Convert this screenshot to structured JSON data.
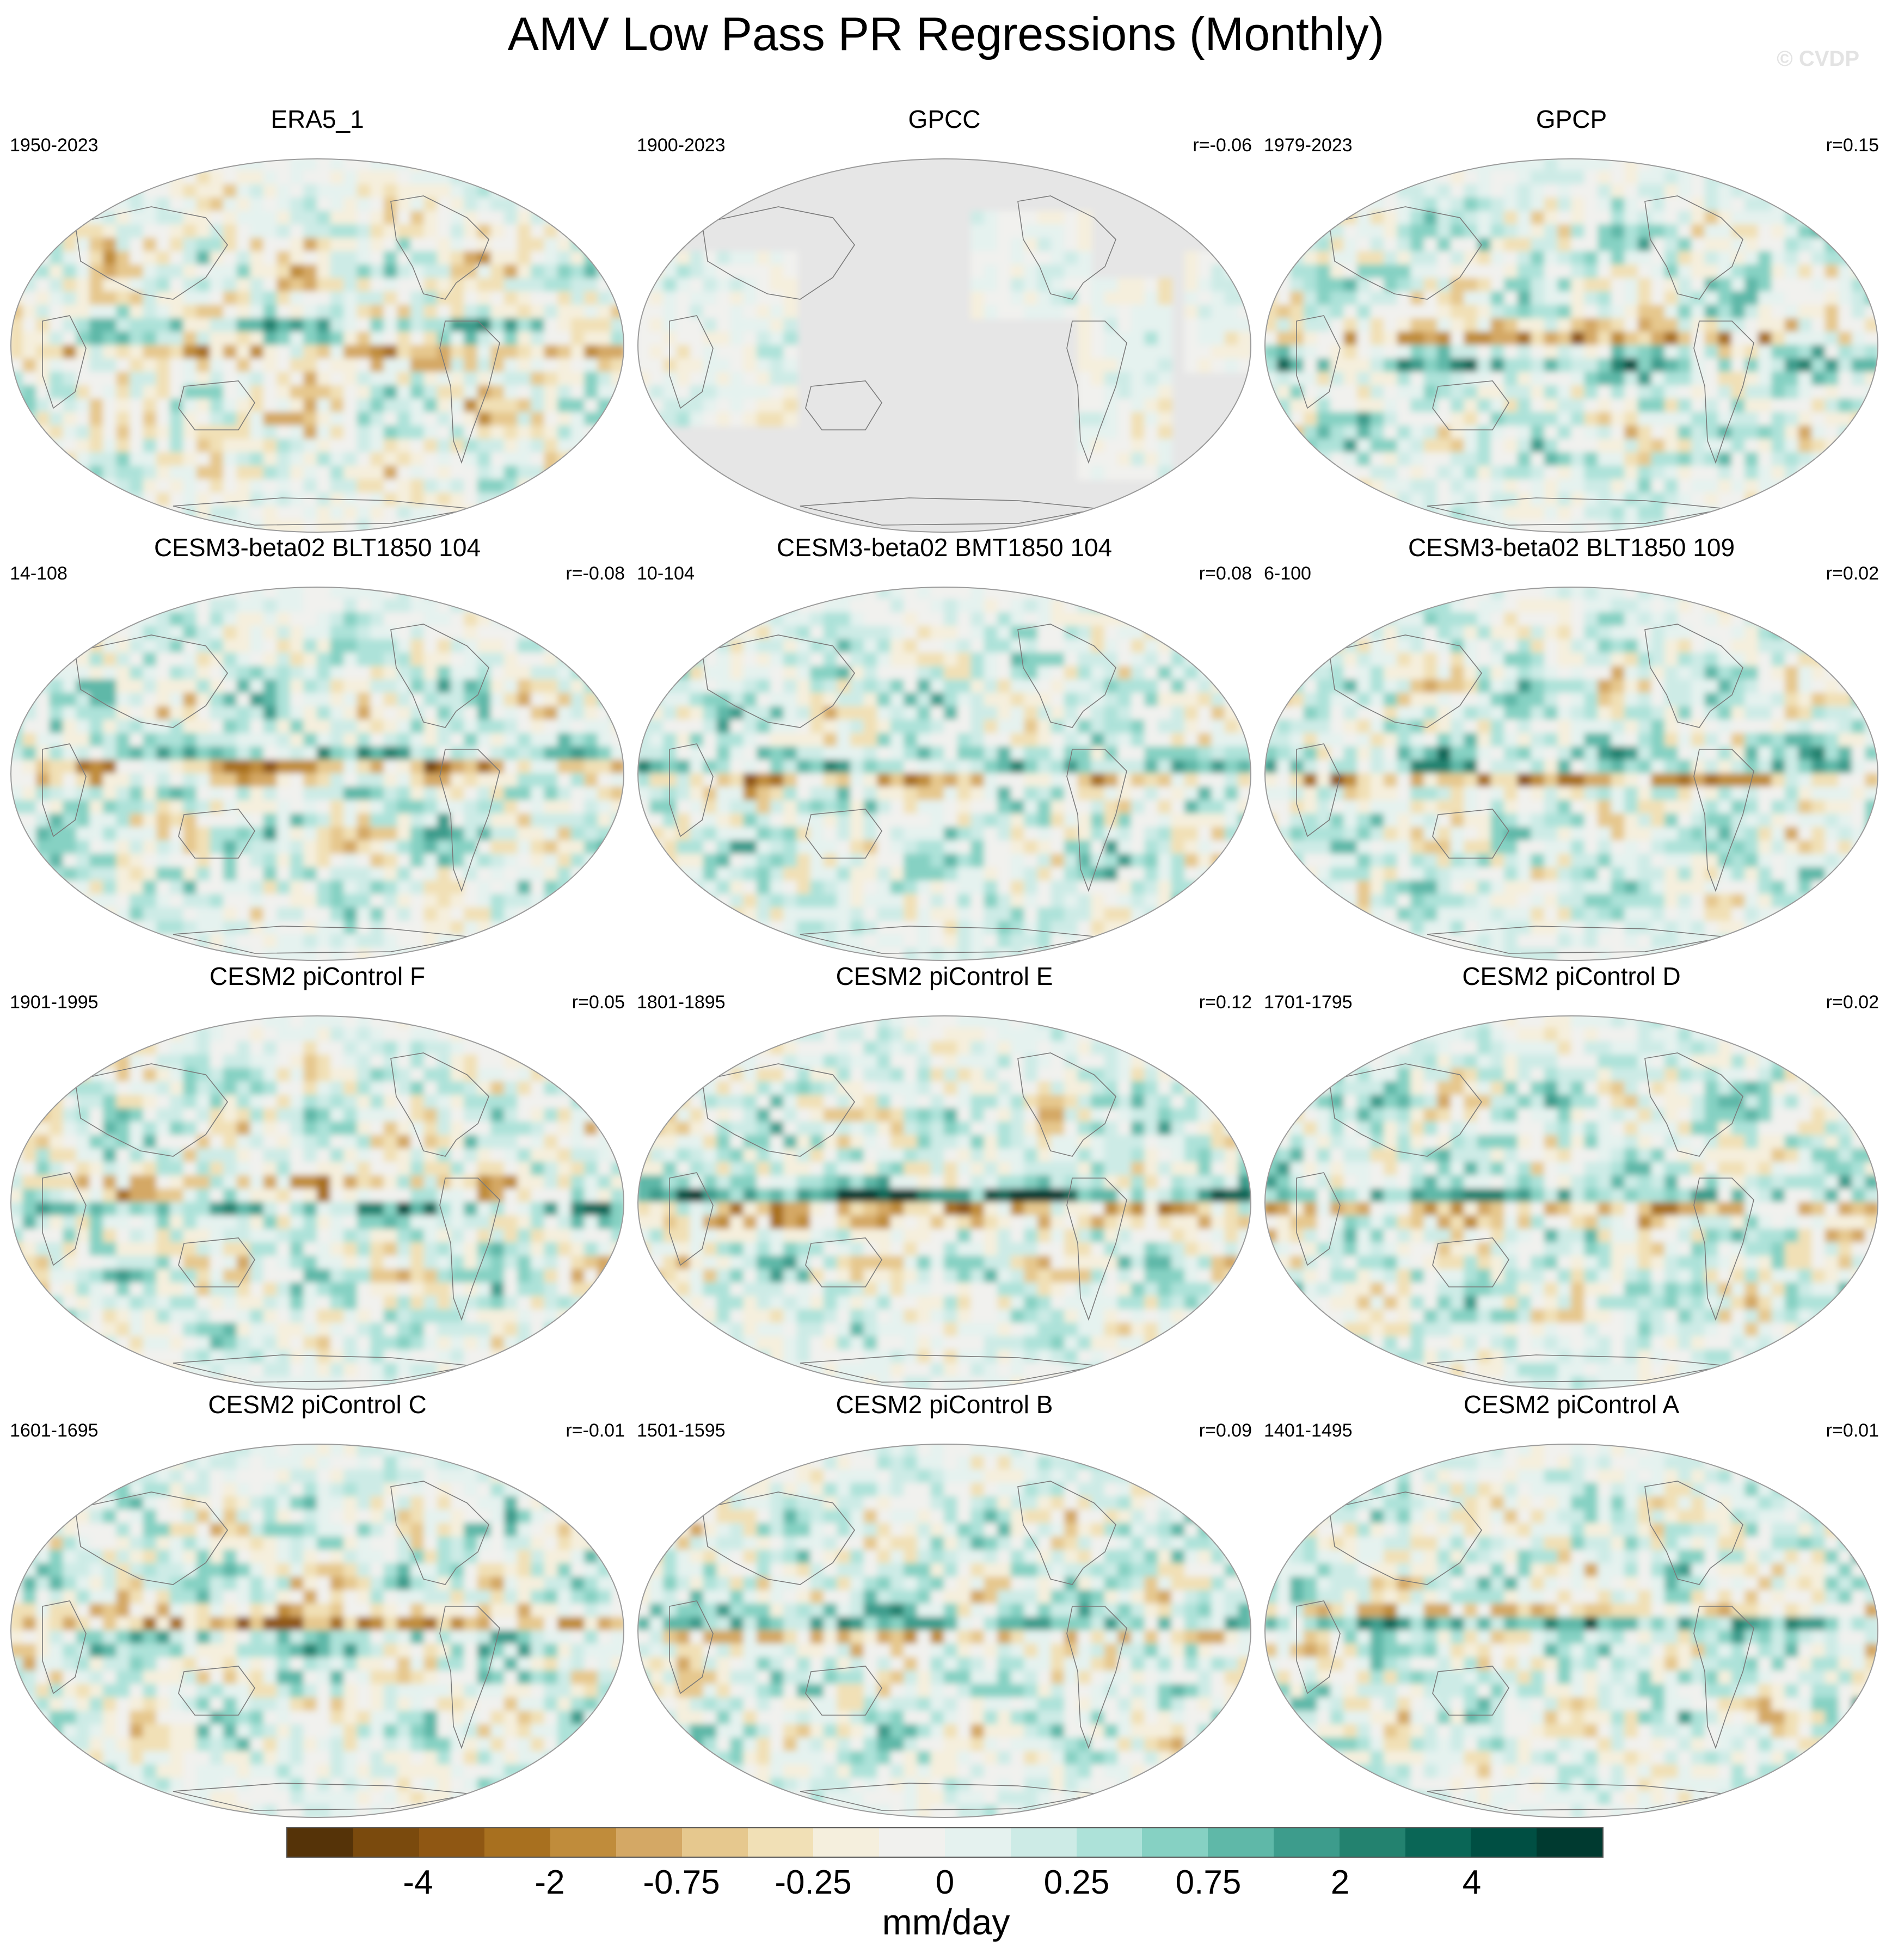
{
  "title": "AMV Low Pass PR Regressions (Monthly)",
  "watermark": "© CVDP",
  "panels": [
    {
      "title": "ERA5_1",
      "years": "1950-2023",
      "corr": "",
      "mask": false,
      "seed": 3,
      "bias": -0.25,
      "bands": [
        {
          "lat": 8,
          "amp": 1.8
        },
        {
          "lat": -5,
          "amp": -1.2
        }
      ]
    },
    {
      "title": "GPCC",
      "years": "1900-2023",
      "corr": "r=-0.06",
      "mask": true,
      "seed": 7,
      "bias": -0.1,
      "bands": []
    },
    {
      "title": "GPCP",
      "years": "1979-2023",
      "corr": "r=0.15",
      "mask": false,
      "seed": 11,
      "bias": 0.3,
      "bands": [
        {
          "lat": 5,
          "amp": -2.2
        },
        {
          "lat": -10,
          "amp": 1.4
        }
      ]
    },
    {
      "title": "CESM3-beta02 BLT1850 104",
      "years": "14-108",
      "corr": "r=-0.08",
      "mask": false,
      "seed": 13,
      "bias": 0.3,
      "bands": [
        {
          "lat": 2,
          "amp": -2.6
        },
        {
          "lat": 9,
          "amp": 1.5
        }
      ]
    },
    {
      "title": "CESM3-beta02 BMT1850 104",
      "years": "10-104",
      "corr": "r=0.08",
      "mask": false,
      "seed": 17,
      "bias": 0.3,
      "bands": [
        {
          "lat": 4,
          "amp": 1.6
        },
        {
          "lat": -3,
          "amp": -1.8
        }
      ]
    },
    {
      "title": "CESM3-beta02 BLT1850 109",
      "years": "6-100",
      "corr": "r=0.02",
      "mask": false,
      "seed": 19,
      "bias": 0.3,
      "bands": [
        {
          "lat": 6,
          "amp": 1.8
        },
        {
          "lat": -3,
          "amp": -2.2
        }
      ]
    },
    {
      "title": "CESM2 piControl F",
      "years": "1901-1995",
      "corr": "r=0.05",
      "mask": false,
      "seed": 23,
      "bias": 0.15,
      "bands": [
        {
          "lat": 6,
          "amp": -1.6
        },
        {
          "lat": -3,
          "amp": 1.6
        }
      ]
    },
    {
      "title": "CESM2 piControl E",
      "years": "1801-1895",
      "corr": "r=0.12",
      "mask": false,
      "seed": 29,
      "bias": 0.2,
      "bands": [
        {
          "lat": 4,
          "amp": 3.0
        },
        {
          "lat": -6,
          "amp": -2.6
        }
      ]
    },
    {
      "title": "CESM2 piControl D",
      "years": "1701-1795",
      "corr": "r=0.02",
      "mask": false,
      "seed": 31,
      "bias": 0.25,
      "bands": [
        {
          "lat": 5,
          "amp": 1.6
        },
        {
          "lat": -5,
          "amp": -2.0
        }
      ]
    },
    {
      "title": "CESM2 piControl C",
      "years": "1601-1695",
      "corr": "r=-0.01",
      "mask": false,
      "seed": 37,
      "bias": 0.2,
      "bands": [
        {
          "lat": 5,
          "amp": -2.6
        },
        {
          "lat": -5,
          "amp": 1.4
        }
      ]
    },
    {
      "title": "CESM2 piControl B",
      "years": "1501-1595",
      "corr": "r=0.09",
      "mask": false,
      "seed": 41,
      "bias": 0.2,
      "bands": [
        {
          "lat": 5,
          "amp": 2.0
        },
        {
          "lat": -4,
          "amp": -1.6
        }
      ]
    },
    {
      "title": "CESM2 piControl A",
      "years": "1401-1495",
      "corr": "r=0.01",
      "mask": false,
      "seed": 43,
      "bias": 0.2,
      "bands": [
        {
          "lat": 3,
          "amp": 2.4
        },
        {
          "lat": 9,
          "amp": -1.8
        }
      ]
    }
  ],
  "colorbar": {
    "colors": [
      "#553308",
      "#7a4a0d",
      "#8f5713",
      "#a8701f",
      "#c08c3b",
      "#d4a865",
      "#e6c88e",
      "#f1e0b6",
      "#f5efdd",
      "#f1f1ee",
      "#e5f2ef",
      "#cdebe6",
      "#ade2d9",
      "#86d1c3",
      "#5fb8a8",
      "#3d9c8c",
      "#23826f",
      "#0a6656",
      "#004f43",
      "#003a30"
    ],
    "labels": [
      "-4",
      "-2",
      "-0.75",
      "-0.25",
      "0",
      "0.25",
      "0.75",
      "2",
      "4"
    ],
    "units": "mm/day"
  }
}
